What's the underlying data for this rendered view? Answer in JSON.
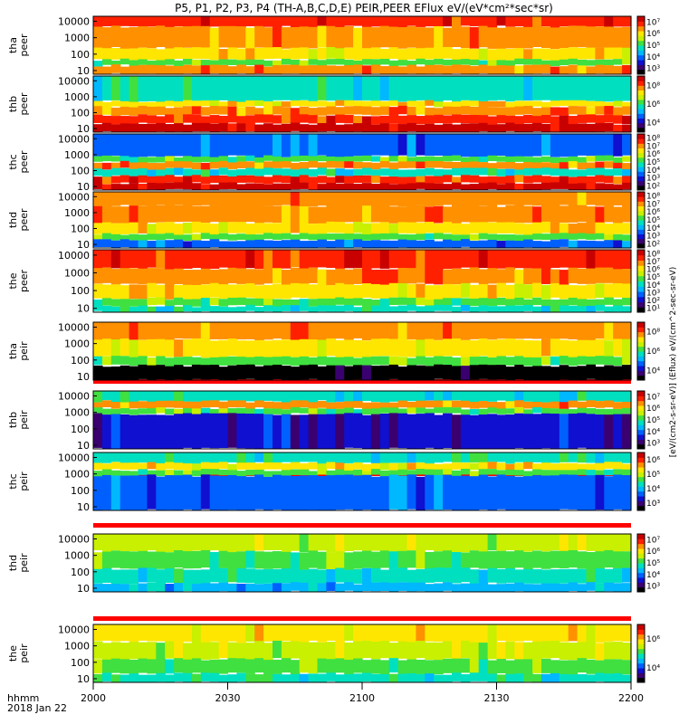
{
  "title": "P5, P1, P2, P3, P4 (TH-A,B,C,D,E) PEIR,PEER EFlux eV/(eV*cm²*sec*sr)",
  "time_axis": {
    "ticks": [
      "2000",
      "2030",
      "2100",
      "2130",
      "2200"
    ],
    "label_line1": "hhmm",
    "label_line2": "2018 Jan 22"
  },
  "colorbar_label": "[eV/(cm2-s-sr-eV)] (Eflux) eV/(cm^2-sec-sr-eV)",
  "colors": {
    "colormap": [
      "#000000",
      "#3a0070",
      "#1010d0",
      "#0060ff",
      "#00b8ff",
      "#00e0c0",
      "#40e040",
      "#c8f000",
      "#ffe600",
      "#ff9000",
      "#ff2000",
      "#c80000"
    ],
    "marker_line": "#8b0000",
    "fill_gap": "#ff0000"
  },
  "chart_data": {
    "type": "heatmap",
    "x": [
      "2000",
      "2030",
      "2100",
      "2130",
      "2200"
    ],
    "y_ticks": [
      "10",
      "100",
      "1000",
      "10000"
    ],
    "y_scale": "log",
    "panels": [
      {
        "name": "tha peer",
        "ylabel_line1": "tha",
        "ylabel_line2": "peer",
        "cbar_ticks": [
          "10³",
          "10⁴",
          "10⁵",
          "10⁶",
          "10⁷"
        ]
      },
      {
        "name": "thb peer",
        "ylabel_line1": "thb",
        "ylabel_line2": "peer",
        "cbar_ticks": [
          "10⁴",
          "10⁶",
          "10⁸"
        ]
      },
      {
        "name": "thc peer",
        "ylabel_line1": "thc",
        "ylabel_line2": "peer",
        "cbar_ticks": [
          "10²",
          "10³",
          "10⁴",
          "10⁵",
          "10⁶",
          "10⁷",
          "10⁸"
        ]
      },
      {
        "name": "thd peer",
        "ylabel_line1": "thd",
        "ylabel_line2": "peer",
        "cbar_ticks": [
          "10²",
          "10³",
          "10⁴",
          "10⁵",
          "10⁶",
          "10⁷",
          "10⁸"
        ]
      },
      {
        "name": "the peer",
        "ylabel_line1": "the",
        "ylabel_line2": "peer",
        "cbar_ticks": [
          "10¹",
          "10²",
          "10³",
          "10⁴",
          "10⁵",
          "10⁶",
          "10⁷",
          "10⁸"
        ]
      },
      {
        "name": "tha peir",
        "ylabel_line1": "tha",
        "ylabel_line2": "peir",
        "cbar_ticks": [
          "10⁴",
          "10⁶",
          "10⁸"
        ]
      },
      {
        "name": "thb peir",
        "ylabel_line1": "thb",
        "ylabel_line2": "peir",
        "cbar_ticks": [
          "10³",
          "10⁴",
          "10⁵",
          "10⁶",
          "10⁷"
        ]
      },
      {
        "name": "thc peir",
        "ylabel_line1": "thc",
        "ylabel_line2": "peir",
        "cbar_ticks": [
          "10³",
          "10⁴",
          "10⁵",
          "10⁶"
        ]
      },
      {
        "name": "thd peir",
        "ylabel_line1": "thd",
        "ylabel_line2": "peir",
        "cbar_ticks": [
          "10³",
          "10⁴",
          "10⁵",
          "10⁶",
          "10⁷"
        ]
      },
      {
        "name": "the peir",
        "ylabel_line1": "the",
        "ylabel_line2": "peir",
        "cbar_ticks": [
          "10⁴",
          "10⁶"
        ]
      }
    ]
  }
}
